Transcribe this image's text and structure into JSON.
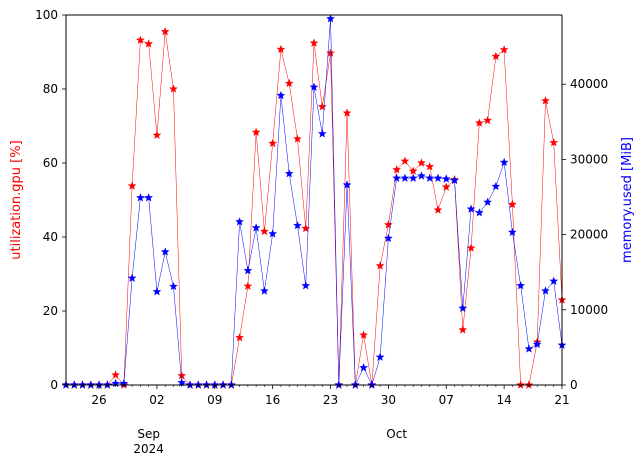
{
  "chart_data": {
    "type": "line",
    "title": "",
    "xlabel": "",
    "x": [
      "2024-08-22",
      "2024-08-23",
      "2024-08-24",
      "2024-08-25",
      "2024-08-26",
      "2024-08-27",
      "2024-08-28",
      "2024-08-29",
      "2024-08-30",
      "2024-08-31",
      "2024-09-01",
      "2024-09-02",
      "2024-09-03",
      "2024-09-04",
      "2024-09-05",
      "2024-09-06",
      "2024-09-07",
      "2024-09-08",
      "2024-09-09",
      "2024-09-10",
      "2024-09-11",
      "2024-09-12",
      "2024-09-13",
      "2024-09-14",
      "2024-09-15",
      "2024-09-16",
      "2024-09-17",
      "2024-09-18",
      "2024-09-19",
      "2024-09-20",
      "2024-09-21",
      "2024-09-22",
      "2024-09-23",
      "2024-09-24",
      "2024-09-25",
      "2024-09-26",
      "2024-09-27",
      "2024-09-28",
      "2024-09-29",
      "2024-09-30",
      "2024-10-01",
      "2024-10-02",
      "2024-10-03",
      "2024-10-04",
      "2024-10-05",
      "2024-10-06",
      "2024-10-07",
      "2024-10-08",
      "2024-10-09",
      "2024-10-10",
      "2024-10-11",
      "2024-10-12",
      "2024-10-13",
      "2024-10-14",
      "2024-10-15",
      "2024-10-16",
      "2024-10-17",
      "2024-10-18",
      "2024-10-19",
      "2024-10-20",
      "2024-10-21"
    ],
    "xlim": [
      "2024-08-22",
      "2024-10-21"
    ],
    "x_ticks": [
      {
        "date": "2024-08-26",
        "label": "26"
      },
      {
        "date": "2024-09-02",
        "label": "02"
      },
      {
        "date": "2024-09-09",
        "label": "09"
      },
      {
        "date": "2024-09-16",
        "label": "16"
      },
      {
        "date": "2024-09-23",
        "label": "23"
      },
      {
        "date": "2024-09-30",
        "label": "30"
      },
      {
        "date": "2024-10-07",
        "label": "07"
      },
      {
        "date": "2024-10-14",
        "label": "14"
      },
      {
        "date": "2024-10-21",
        "label": "21"
      }
    ],
    "x_month_labels": [
      {
        "date": "2024-09-01",
        "lines": [
          "Sep",
          "2024"
        ]
      },
      {
        "date": "2024-10-01",
        "lines": [
          "Oct"
        ]
      }
    ],
    "y_left": {
      "label": "utilization.gpu [%]",
      "color": "#ff0000",
      "lim": [
        0,
        100
      ],
      "ticks": [
        0,
        20,
        40,
        60,
        80,
        100
      ]
    },
    "y_right": {
      "label": "memory.used [MiB]",
      "color": "#0000ff",
      "lim": [
        0,
        49200
      ],
      "ticks": [
        0,
        10000,
        20000,
        30000,
        40000
      ]
    },
    "series": [
      {
        "axis": "left",
        "color": "#ff0000",
        "marker": "star",
        "values": [
          0,
          0,
          0,
          0,
          0,
          0,
          2.7,
          0,
          53.8,
          93.2,
          92.2,
          67.5,
          95.5,
          80,
          2.5,
          0,
          0,
          0,
          0,
          0,
          0,
          12.8,
          26.7,
          68.3,
          41.5,
          65.3,
          90.7,
          81.5,
          66.5,
          42.3,
          92.4,
          75.2,
          89.7,
          0,
          73.5,
          0,
          13.5,
          0,
          32.2,
          43.3,
          58.2,
          60.5,
          57.8,
          60,
          59,
          47.3,
          53.5,
          55.5,
          14.9,
          37,
          70.8,
          71.5,
          88.8,
          90.6,
          48.8,
          0,
          0,
          11.6,
          76.8,
          65.5,
          23
        ]
      },
      {
        "axis": "right",
        "color": "#0000ff",
        "marker": "star",
        "values": [
          0,
          0,
          0,
          0,
          0,
          0,
          200,
          200,
          14200,
          24900,
          24900,
          12400,
          17700,
          13100,
          300,
          0,
          0,
          0,
          0,
          0,
          0,
          21700,
          15200,
          20900,
          12500,
          20100,
          38500,
          28100,
          21200,
          13200,
          39600,
          33400,
          48700,
          0,
          26600,
          0,
          2300,
          0,
          3700,
          19500,
          27500,
          27500,
          27500,
          27800,
          27500,
          27500,
          27400,
          27200,
          10200,
          23400,
          22900,
          24300,
          26400,
          29600,
          20300,
          13200,
          4800,
          5400,
          12500,
          13800,
          5300
        ]
      }
    ],
    "grid": false,
    "legend": "none"
  }
}
